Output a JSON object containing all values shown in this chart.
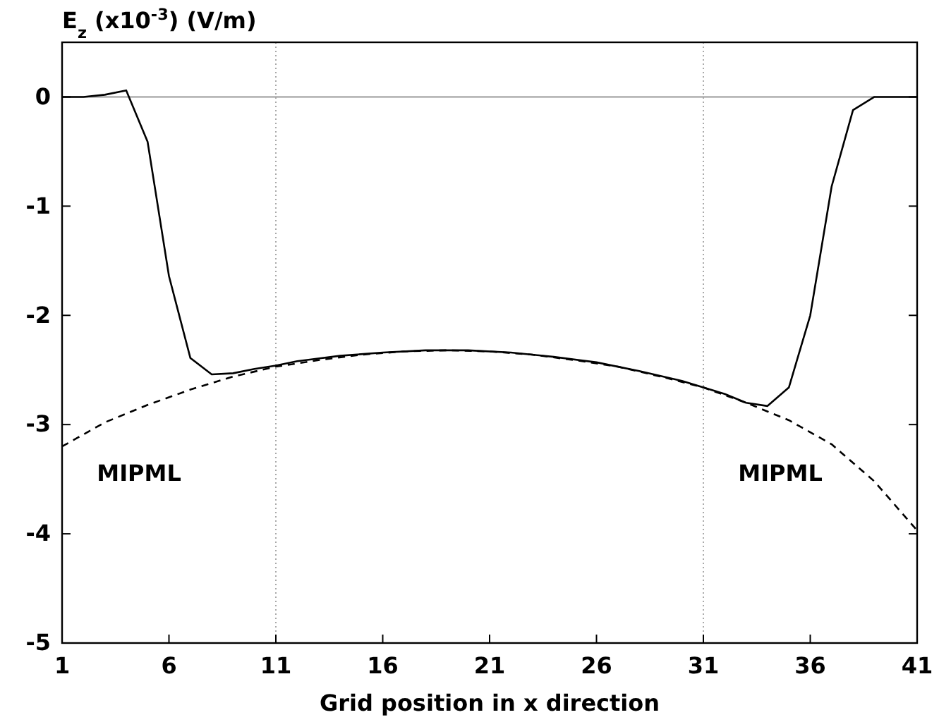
{
  "chart_data": {
    "type": "line",
    "ylabel": "E$_{z}$ (x10$^{-3}$) (V/m)",
    "xlabel": "Grid position in x direction",
    "xlim": [
      1,
      41
    ],
    "xticks": [
      1,
      6,
      11,
      16,
      21,
      26,
      31,
      36,
      41
    ],
    "ylim": [
      -5,
      0.5
    ],
    "yticks": [
      0,
      -1,
      -2,
      -3,
      -4,
      -5
    ],
    "series": [
      {
        "color": "#000000",
        "line_style": "solid",
        "x": [
          1,
          2,
          3,
          4,
          5,
          6,
          7,
          8,
          9,
          10,
          11,
          12,
          14,
          16,
          18,
          20,
          22,
          24,
          26,
          28,
          30,
          31,
          32,
          33,
          34,
          35,
          36,
          37,
          38,
          39,
          40,
          41
        ],
        "values": [
          0,
          0,
          0.02,
          0.06,
          -0.41,
          -1.64,
          -2.39,
          -2.54,
          -2.53,
          -2.49,
          -2.46,
          -2.42,
          -2.37,
          -2.34,
          -2.32,
          -2.32,
          -2.34,
          -2.38,
          -2.43,
          -2.51,
          -2.6,
          -2.66,
          -2.72,
          -2.8,
          -2.83,
          -2.66,
          -2,
          -0.82,
          -0.12,
          0,
          0,
          0
        ]
      },
      {
        "color": "#000000",
        "line_style": "dashed",
        "x": [
          1,
          3,
          5,
          7,
          9,
          11,
          13,
          15,
          17,
          19,
          21,
          23,
          25,
          27,
          29,
          31,
          33,
          35,
          37,
          39,
          41
        ],
        "values": [
          -3.2,
          -2.98,
          -2.82,
          -2.68,
          -2.56,
          -2.47,
          -2.41,
          -2.36,
          -2.33,
          -2.32,
          -2.33,
          -2.36,
          -2.41,
          -2.47,
          -2.56,
          -2.66,
          -2.8,
          -2.96,
          -3.18,
          -3.52,
          -3.97
        ]
      }
    ],
    "ref_lines": [
      {
        "axis": "y",
        "value": 0,
        "color": "#999999",
        "line_style": "solid"
      },
      {
        "axis": "x",
        "value": 11,
        "color": "#aaaaaa",
        "line_style": "dotted"
      },
      {
        "axis": "x",
        "value": 31,
        "color": "#aaaaaa",
        "line_style": "dotted"
      }
    ],
    "annotations": [
      "MIPML",
      "MIPML"
    ],
    "grid": false
  }
}
